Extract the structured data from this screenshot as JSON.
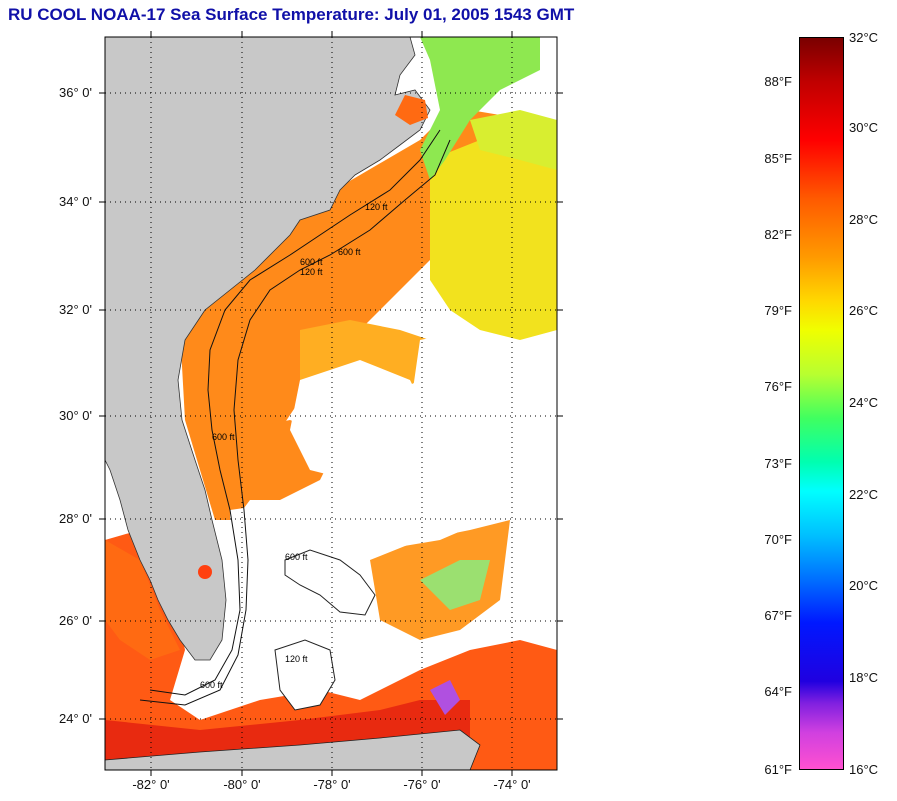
{
  "title": "RU COOL  NOAA-17  Sea Surface Temperature:  July 01, 2005 1543 GMT",
  "map": {
    "lat_labels": [
      "36° 0'",
      "34° 0'",
      "32° 0'",
      "30° 0'",
      "28° 0'",
      "26° 0'",
      "24° 0'"
    ],
    "lon_labels": [
      "-82° 0'",
      "-80° 0'",
      "-78° 0'",
      "-76° 0'",
      "-74° 0'"
    ],
    "contour_labels": [
      "120 ft",
      "600 ft",
      "120 ft",
      "600 ft",
      "600 ft",
      "120 ft",
      "600 ft",
      "600 ft"
    ],
    "colors": {
      "land": "#c8c8c8",
      "cloud": "#ffffff",
      "warm": "#ff6a10",
      "mid": "#ffb020",
      "cool": "#e8f020",
      "cold": "#60e860"
    }
  },
  "colorbar": {
    "fahrenheit": [
      "88°F",
      "85°F",
      "82°F",
      "79°F",
      "76°F",
      "73°F",
      "70°F",
      "67°F",
      "64°F",
      "61°F"
    ],
    "celsius": [
      "32°C",
      "30°C",
      "28°C",
      "26°C",
      "24°C",
      "22°C",
      "20°C",
      "18°C",
      "16°C"
    ],
    "range_c": [
      16,
      32
    ]
  }
}
